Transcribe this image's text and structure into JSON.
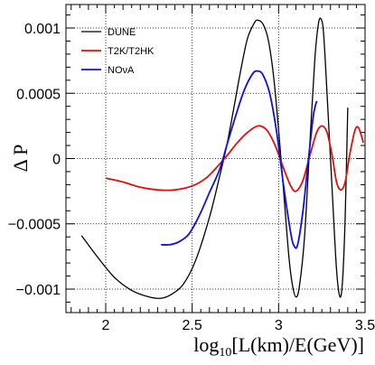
{
  "chart_data": {
    "type": "line",
    "xlabel": "log10[L(km)/E(GeV)]",
    "xlabel_parts": {
      "main": "log",
      "sub": "10",
      "rest": "[L(km)/E(GeV)]"
    },
    "ylabel": "Δ P",
    "xlim": [
      1.77,
      3.5
    ],
    "ylim": [
      -0.00118,
      0.00118
    ],
    "grid": true,
    "legend_position": "top-left",
    "x_ticks": [
      {
        "value": 2,
        "label": "2"
      },
      {
        "value": 2.5,
        "label": "2.5"
      },
      {
        "value": 3,
        "label": "3"
      },
      {
        "value": 3.5,
        "label": "3.5"
      }
    ],
    "y_ticks": [
      {
        "value": 0.001,
        "label": "0.001"
      },
      {
        "value": 0.0005,
        "label": "0.0005"
      },
      {
        "value": 0,
        "label": "0"
      },
      {
        "value": -0.0005,
        "label": "−0.0005"
      },
      {
        "value": -0.001,
        "label": "−0.001"
      }
    ],
    "series": [
      {
        "name": "DUNE",
        "color": "#000000",
        "points": [
          [
            1.86,
            -0.00059
          ],
          [
            1.95,
            -0.00075
          ],
          [
            2.05,
            -0.00091
          ],
          [
            2.15,
            -0.00101
          ],
          [
            2.25,
            -0.00106
          ],
          [
            2.32,
            -0.00107
          ],
          [
            2.38,
            -0.00104
          ],
          [
            2.45,
            -0.00096
          ],
          [
            2.52,
            -0.00078
          ],
          [
            2.6,
            -0.00045
          ],
          [
            2.66,
            -0.00013
          ],
          [
            2.7,
            0.0001
          ],
          [
            2.74,
            0.00038
          ],
          [
            2.78,
            0.00067
          ],
          [
            2.82,
            0.00092
          ],
          [
            2.86,
            0.00104
          ],
          [
            2.88,
            0.00106
          ],
          [
            2.91,
            0.00103
          ],
          [
            2.94,
            0.00091
          ],
          [
            2.97,
            0.00064
          ],
          [
            3.0,
            0.00022
          ],
          [
            3.03,
            -0.00027
          ],
          [
            3.06,
            -0.00076
          ],
          [
            3.08,
            -0.00097
          ],
          [
            3.1,
            -0.00106
          ],
          [
            3.12,
            -0.00098
          ],
          [
            3.15,
            -0.0006
          ],
          [
            3.18,
            0.0001
          ],
          [
            3.21,
            0.00077
          ],
          [
            3.23,
            0.00103
          ],
          [
            3.245,
            0.00107
          ],
          [
            3.26,
            0.00096
          ],
          [
            3.28,
            0.0005
          ],
          [
            3.31,
            -0.00025
          ],
          [
            3.335,
            -0.00085
          ],
          [
            3.355,
            -0.00106
          ],
          [
            3.37,
            -0.00093
          ],
          [
            3.385,
            -0.00045
          ],
          [
            3.4,
            0.00039
          ]
        ]
      },
      {
        "name": "T2K/T2HK",
        "color": "#e01010",
        "points": [
          [
            2.0,
            -0.00015
          ],
          [
            2.1,
            -0.00018
          ],
          [
            2.2,
            -0.00022
          ],
          [
            2.3,
            -0.00024
          ],
          [
            2.4,
            -0.00024
          ],
          [
            2.5,
            -0.00021
          ],
          [
            2.58,
            -0.00015
          ],
          [
            2.64,
            -7e-05
          ],
          [
            2.7,
            2e-05
          ],
          [
            2.76,
            0.00012
          ],
          [
            2.82,
            0.0002
          ],
          [
            2.88,
            0.00025
          ],
          [
            2.93,
            0.00022
          ],
          [
            2.98,
            0.0001
          ],
          [
            3.03,
            -8e-05
          ],
          [
            3.07,
            -0.00021
          ],
          [
            3.1,
            -0.00025
          ],
          [
            3.14,
            -0.00017
          ],
          [
            3.18,
            2e-05
          ],
          [
            3.22,
            0.0002
          ],
          [
            3.25,
            0.00025
          ],
          [
            3.28,
            0.0002
          ],
          [
            3.31,
            2e-05
          ],
          [
            3.335,
            -0.00018
          ],
          [
            3.36,
            -0.00024
          ],
          [
            3.385,
            -0.00018
          ],
          [
            3.41,
            2e-05
          ],
          [
            3.44,
            0.00021
          ],
          [
            3.46,
            0.00024
          ],
          [
            3.48,
            0.00017
          ],
          [
            3.49,
            0.00012
          ]
        ]
      },
      {
        "name": "NOνA",
        "color": "#1010dd",
        "points": [
          [
            2.32,
            -0.00066
          ],
          [
            2.37,
            -0.00066
          ],
          [
            2.42,
            -0.00064
          ],
          [
            2.48,
            -0.00058
          ],
          [
            2.54,
            -0.00044
          ],
          [
            2.6,
            -0.00026
          ],
          [
            2.66,
            -8e-05
          ],
          [
            2.7,
            0.0001
          ],
          [
            2.75,
            0.00032
          ],
          [
            2.8,
            0.00052
          ],
          [
            2.85,
            0.00065
          ],
          [
            2.88,
            0.00067
          ],
          [
            2.91,
            0.00064
          ],
          [
            2.95,
            0.00049
          ],
          [
            2.99,
            0.00019
          ],
          [
            3.03,
            -0.00022
          ],
          [
            3.07,
            -0.00057
          ],
          [
            3.09,
            -0.00067
          ],
          [
            3.11,
            -0.00066
          ],
          [
            3.14,
            -0.00041
          ],
          [
            3.17,
            -4e-05
          ],
          [
            3.2,
            0.00032
          ],
          [
            3.22,
            0.00044
          ]
        ]
      }
    ]
  }
}
